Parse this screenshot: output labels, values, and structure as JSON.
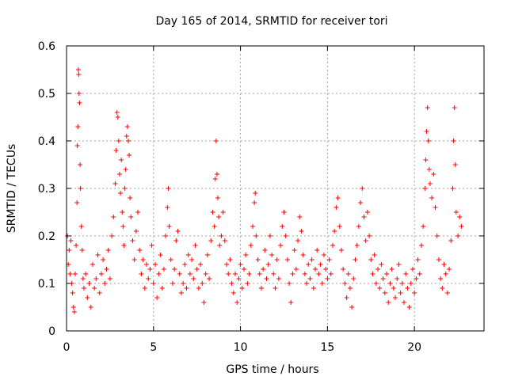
{
  "chart_data": {
    "type": "scatter",
    "title": "Day 165 of 2014, SRMTID for receiver tori",
    "xlabel": "GPS time / hours",
    "ylabel": "SRMTID / TECUs",
    "xlim": [
      0,
      24
    ],
    "ylim": [
      0,
      0.6
    ],
    "xticks": [
      0,
      5,
      10,
      15,
      20
    ],
    "xtick_labels": [
      "0",
      "5",
      "10",
      "15",
      "20"
    ],
    "yticks": [
      0,
      0.1,
      0.2,
      0.3,
      0.4,
      0.5,
      0.6
    ],
    "ytick_labels": [
      "0",
      "0.1",
      "0.2",
      "0.3",
      "0.4",
      "0.5",
      "0.6"
    ],
    "grid": true,
    "marker": "+",
    "marker_color": "#ff0000",
    "series": [
      {
        "name": "SRMTID",
        "points": [
          [
            0.05,
            0.2
          ],
          [
            0.1,
            0.14
          ],
          [
            0.15,
            0.17
          ],
          [
            0.2,
            0.12
          ],
          [
            0.25,
            0.19
          ],
          [
            0.3,
            0.1
          ],
          [
            0.35,
            0.08
          ],
          [
            0.4,
            0.05
          ],
          [
            0.45,
            0.04
          ],
          [
            0.5,
            0.12
          ],
          [
            0.55,
            0.18
          ],
          [
            0.6,
            0.27
          ],
          [
            0.62,
            0.39
          ],
          [
            0.65,
            0.43
          ],
          [
            0.68,
            0.55
          ],
          [
            0.7,
            0.54
          ],
          [
            0.72,
            0.5
          ],
          [
            0.75,
            0.48
          ],
          [
            0.78,
            0.35
          ],
          [
            0.8,
            0.3
          ],
          [
            0.85,
            0.22
          ],
          [
            0.9,
            0.17
          ],
          [
            0.95,
            0.11
          ],
          [
            1.0,
            0.09
          ],
          [
            1.1,
            0.12
          ],
          [
            1.2,
            0.07
          ],
          [
            1.3,
            0.1
          ],
          [
            1.4,
            0.05
          ],
          [
            1.5,
            0.14
          ],
          [
            1.6,
            0.09
          ],
          [
            1.7,
            0.11
          ],
          [
            1.8,
            0.16
          ],
          [
            1.9,
            0.08
          ],
          [
            2.0,
            0.12
          ],
          [
            2.1,
            0.15
          ],
          [
            2.2,
            0.1
          ],
          [
            2.3,
            0.13
          ],
          [
            2.4,
            0.17
          ],
          [
            2.5,
            0.11
          ],
          [
            2.6,
            0.2
          ],
          [
            2.7,
            0.24
          ],
          [
            2.8,
            0.31
          ],
          [
            2.85,
            0.38
          ],
          [
            2.9,
            0.46
          ],
          [
            2.95,
            0.45
          ],
          [
            3.0,
            0.4
          ],
          [
            3.05,
            0.33
          ],
          [
            3.1,
            0.29
          ],
          [
            3.15,
            0.36
          ],
          [
            3.2,
            0.25
          ],
          [
            3.25,
            0.22
          ],
          [
            3.3,
            0.18
          ],
          [
            3.35,
            0.3
          ],
          [
            3.4,
            0.34
          ],
          [
            3.45,
            0.41
          ],
          [
            3.5,
            0.43
          ],
          [
            3.55,
            0.4
          ],
          [
            3.6,
            0.37
          ],
          [
            3.65,
            0.28
          ],
          [
            3.7,
            0.24
          ],
          [
            3.8,
            0.19
          ],
          [
            3.9,
            0.15
          ],
          [
            4.0,
            0.21
          ],
          [
            4.1,
            0.25
          ],
          [
            4.2,
            0.17
          ],
          [
            4.3,
            0.12
          ],
          [
            4.4,
            0.15
          ],
          [
            4.5,
            0.09
          ],
          [
            4.6,
            0.14
          ],
          [
            4.7,
            0.11
          ],
          [
            4.8,
            0.13
          ],
          [
            4.9,
            0.18
          ],
          [
            5.0,
            0.1
          ],
          [
            5.1,
            0.14
          ],
          [
            5.2,
            0.07
          ],
          [
            5.3,
            0.12
          ],
          [
            5.4,
            0.16
          ],
          [
            5.5,
            0.09
          ],
          [
            5.6,
            0.13
          ],
          [
            5.7,
            0.2
          ],
          [
            5.8,
            0.26
          ],
          [
            5.85,
            0.3
          ],
          [
            5.9,
            0.22
          ],
          [
            6.0,
            0.15
          ],
          [
            6.1,
            0.1
          ],
          [
            6.2,
            0.13
          ],
          [
            6.3,
            0.19
          ],
          [
            6.4,
            0.21
          ],
          [
            6.5,
            0.12
          ],
          [
            6.6,
            0.08
          ],
          [
            6.7,
            0.1
          ],
          [
            6.8,
            0.14
          ],
          [
            6.9,
            0.09
          ],
          [
            7.0,
            0.16
          ],
          [
            7.1,
            0.12
          ],
          [
            7.2,
            0.15
          ],
          [
            7.3,
            0.11
          ],
          [
            7.4,
            0.18
          ],
          [
            7.5,
            0.13
          ],
          [
            7.6,
            0.09
          ],
          [
            7.7,
            0.14
          ],
          [
            7.8,
            0.1
          ],
          [
            7.9,
            0.06
          ],
          [
            8.0,
            0.12
          ],
          [
            8.1,
            0.16
          ],
          [
            8.2,
            0.11
          ],
          [
            8.3,
            0.19
          ],
          [
            8.4,
            0.25
          ],
          [
            8.5,
            0.22
          ],
          [
            8.55,
            0.32
          ],
          [
            8.6,
            0.4
          ],
          [
            8.65,
            0.33
          ],
          [
            8.7,
            0.28
          ],
          [
            8.75,
            0.24
          ],
          [
            8.8,
            0.18
          ],
          [
            8.9,
            0.2
          ],
          [
            9.0,
            0.25
          ],
          [
            9.1,
            0.19
          ],
          [
            9.2,
            0.14
          ],
          [
            9.3,
            0.12
          ],
          [
            9.4,
            0.15
          ],
          [
            9.5,
            0.1
          ],
          [
            9.6,
            0.08
          ],
          [
            9.7,
            0.12
          ],
          [
            9.8,
            0.06
          ],
          [
            9.9,
            0.11
          ],
          [
            10.0,
            0.14
          ],
          [
            10.1,
            0.09
          ],
          [
            10.2,
            0.13
          ],
          [
            10.3,
            0.16
          ],
          [
            10.4,
            0.1
          ],
          [
            10.5,
            0.12
          ],
          [
            10.6,
            0.18
          ],
          [
            10.7,
            0.22
          ],
          [
            10.8,
            0.27
          ],
          [
            10.85,
            0.29
          ],
          [
            10.9,
            0.2
          ],
          [
            11.0,
            0.15
          ],
          [
            11.1,
            0.12
          ],
          [
            11.2,
            0.09
          ],
          [
            11.3,
            0.13
          ],
          [
            11.4,
            0.17
          ],
          [
            11.5,
            0.11
          ],
          [
            11.6,
            0.14
          ],
          [
            11.7,
            0.2
          ],
          [
            11.8,
            0.16
          ],
          [
            11.9,
            0.12
          ],
          [
            12.0,
            0.09
          ],
          [
            12.1,
            0.15
          ],
          [
            12.2,
            0.11
          ],
          [
            12.3,
            0.18
          ],
          [
            12.4,
            0.22
          ],
          [
            12.5,
            0.25
          ],
          [
            12.6,
            0.2
          ],
          [
            12.7,
            0.15
          ],
          [
            12.8,
            0.1
          ],
          [
            12.9,
            0.06
          ],
          [
            13.0,
            0.12
          ],
          [
            13.1,
            0.17
          ],
          [
            13.2,
            0.13
          ],
          [
            13.3,
            0.19
          ],
          [
            13.4,
            0.24
          ],
          [
            13.5,
            0.21
          ],
          [
            13.6,
            0.16
          ],
          [
            13.7,
            0.12
          ],
          [
            13.8,
            0.1
          ],
          [
            13.9,
            0.14
          ],
          [
            14.0,
            0.11
          ],
          [
            14.1,
            0.15
          ],
          [
            14.2,
            0.09
          ],
          [
            14.3,
            0.13
          ],
          [
            14.4,
            0.17
          ],
          [
            14.5,
            0.12
          ],
          [
            14.6,
            0.14
          ],
          [
            14.7,
            0.1
          ],
          [
            14.8,
            0.16
          ],
          [
            14.9,
            0.13
          ],
          [
            15.0,
            0.11
          ],
          [
            15.1,
            0.15
          ],
          [
            15.2,
            0.12
          ],
          [
            15.3,
            0.18
          ],
          [
            15.4,
            0.21
          ],
          [
            15.5,
            0.26
          ],
          [
            15.6,
            0.28
          ],
          [
            15.7,
            0.22
          ],
          [
            15.8,
            0.17
          ],
          [
            15.9,
            0.13
          ],
          [
            16.0,
            0.1
          ],
          [
            16.1,
            0.07
          ],
          [
            16.2,
            0.12
          ],
          [
            16.3,
            0.09
          ],
          [
            16.4,
            0.05
          ],
          [
            16.5,
            0.11
          ],
          [
            16.6,
            0.15
          ],
          [
            16.7,
            0.18
          ],
          [
            16.8,
            0.22
          ],
          [
            16.9,
            0.27
          ],
          [
            17.0,
            0.3
          ],
          [
            17.1,
            0.24
          ],
          [
            17.2,
            0.19
          ],
          [
            17.3,
            0.25
          ],
          [
            17.4,
            0.2
          ],
          [
            17.5,
            0.15
          ],
          [
            17.6,
            0.12
          ],
          [
            17.7,
            0.16
          ],
          [
            17.8,
            0.1
          ],
          [
            17.9,
            0.13
          ],
          [
            18.0,
            0.09
          ],
          [
            18.1,
            0.14
          ],
          [
            18.2,
            0.11
          ],
          [
            18.3,
            0.08
          ],
          [
            18.4,
            0.12
          ],
          [
            18.5,
            0.06
          ],
          [
            18.6,
            0.1
          ],
          [
            18.7,
            0.13
          ],
          [
            18.8,
            0.09
          ],
          [
            18.9,
            0.07
          ],
          [
            19.0,
            0.11
          ],
          [
            19.1,
            0.14
          ],
          [
            19.2,
            0.08
          ],
          [
            19.3,
            0.1
          ],
          [
            19.4,
            0.06
          ],
          [
            19.5,
            0.12
          ],
          [
            19.6,
            0.09
          ],
          [
            19.7,
            0.05
          ],
          [
            19.8,
            0.1
          ],
          [
            19.9,
            0.13
          ],
          [
            20.0,
            0.08
          ],
          [
            20.1,
            0.11
          ],
          [
            20.2,
            0.15
          ],
          [
            20.3,
            0.12
          ],
          [
            20.4,
            0.18
          ],
          [
            20.5,
            0.22
          ],
          [
            20.6,
            0.3
          ],
          [
            20.65,
            0.36
          ],
          [
            20.7,
            0.42
          ],
          [
            20.75,
            0.47
          ],
          [
            20.8,
            0.4
          ],
          [
            20.85,
            0.34
          ],
          [
            20.9,
            0.31
          ],
          [
            21.0,
            0.28
          ],
          [
            21.1,
            0.33
          ],
          [
            21.2,
            0.26
          ],
          [
            21.3,
            0.2
          ],
          [
            21.4,
            0.15
          ],
          [
            21.5,
            0.11
          ],
          [
            21.6,
            0.09
          ],
          [
            21.7,
            0.14
          ],
          [
            21.8,
            0.12
          ],
          [
            21.9,
            0.08
          ],
          [
            22.0,
            0.13
          ],
          [
            22.1,
            0.19
          ],
          [
            22.2,
            0.3
          ],
          [
            22.25,
            0.4
          ],
          [
            22.3,
            0.47
          ],
          [
            22.35,
            0.35
          ],
          [
            22.4,
            0.25
          ],
          [
            22.5,
            0.2
          ],
          [
            22.6,
            0.24
          ],
          [
            22.7,
            0.22
          ]
        ]
      }
    ]
  }
}
